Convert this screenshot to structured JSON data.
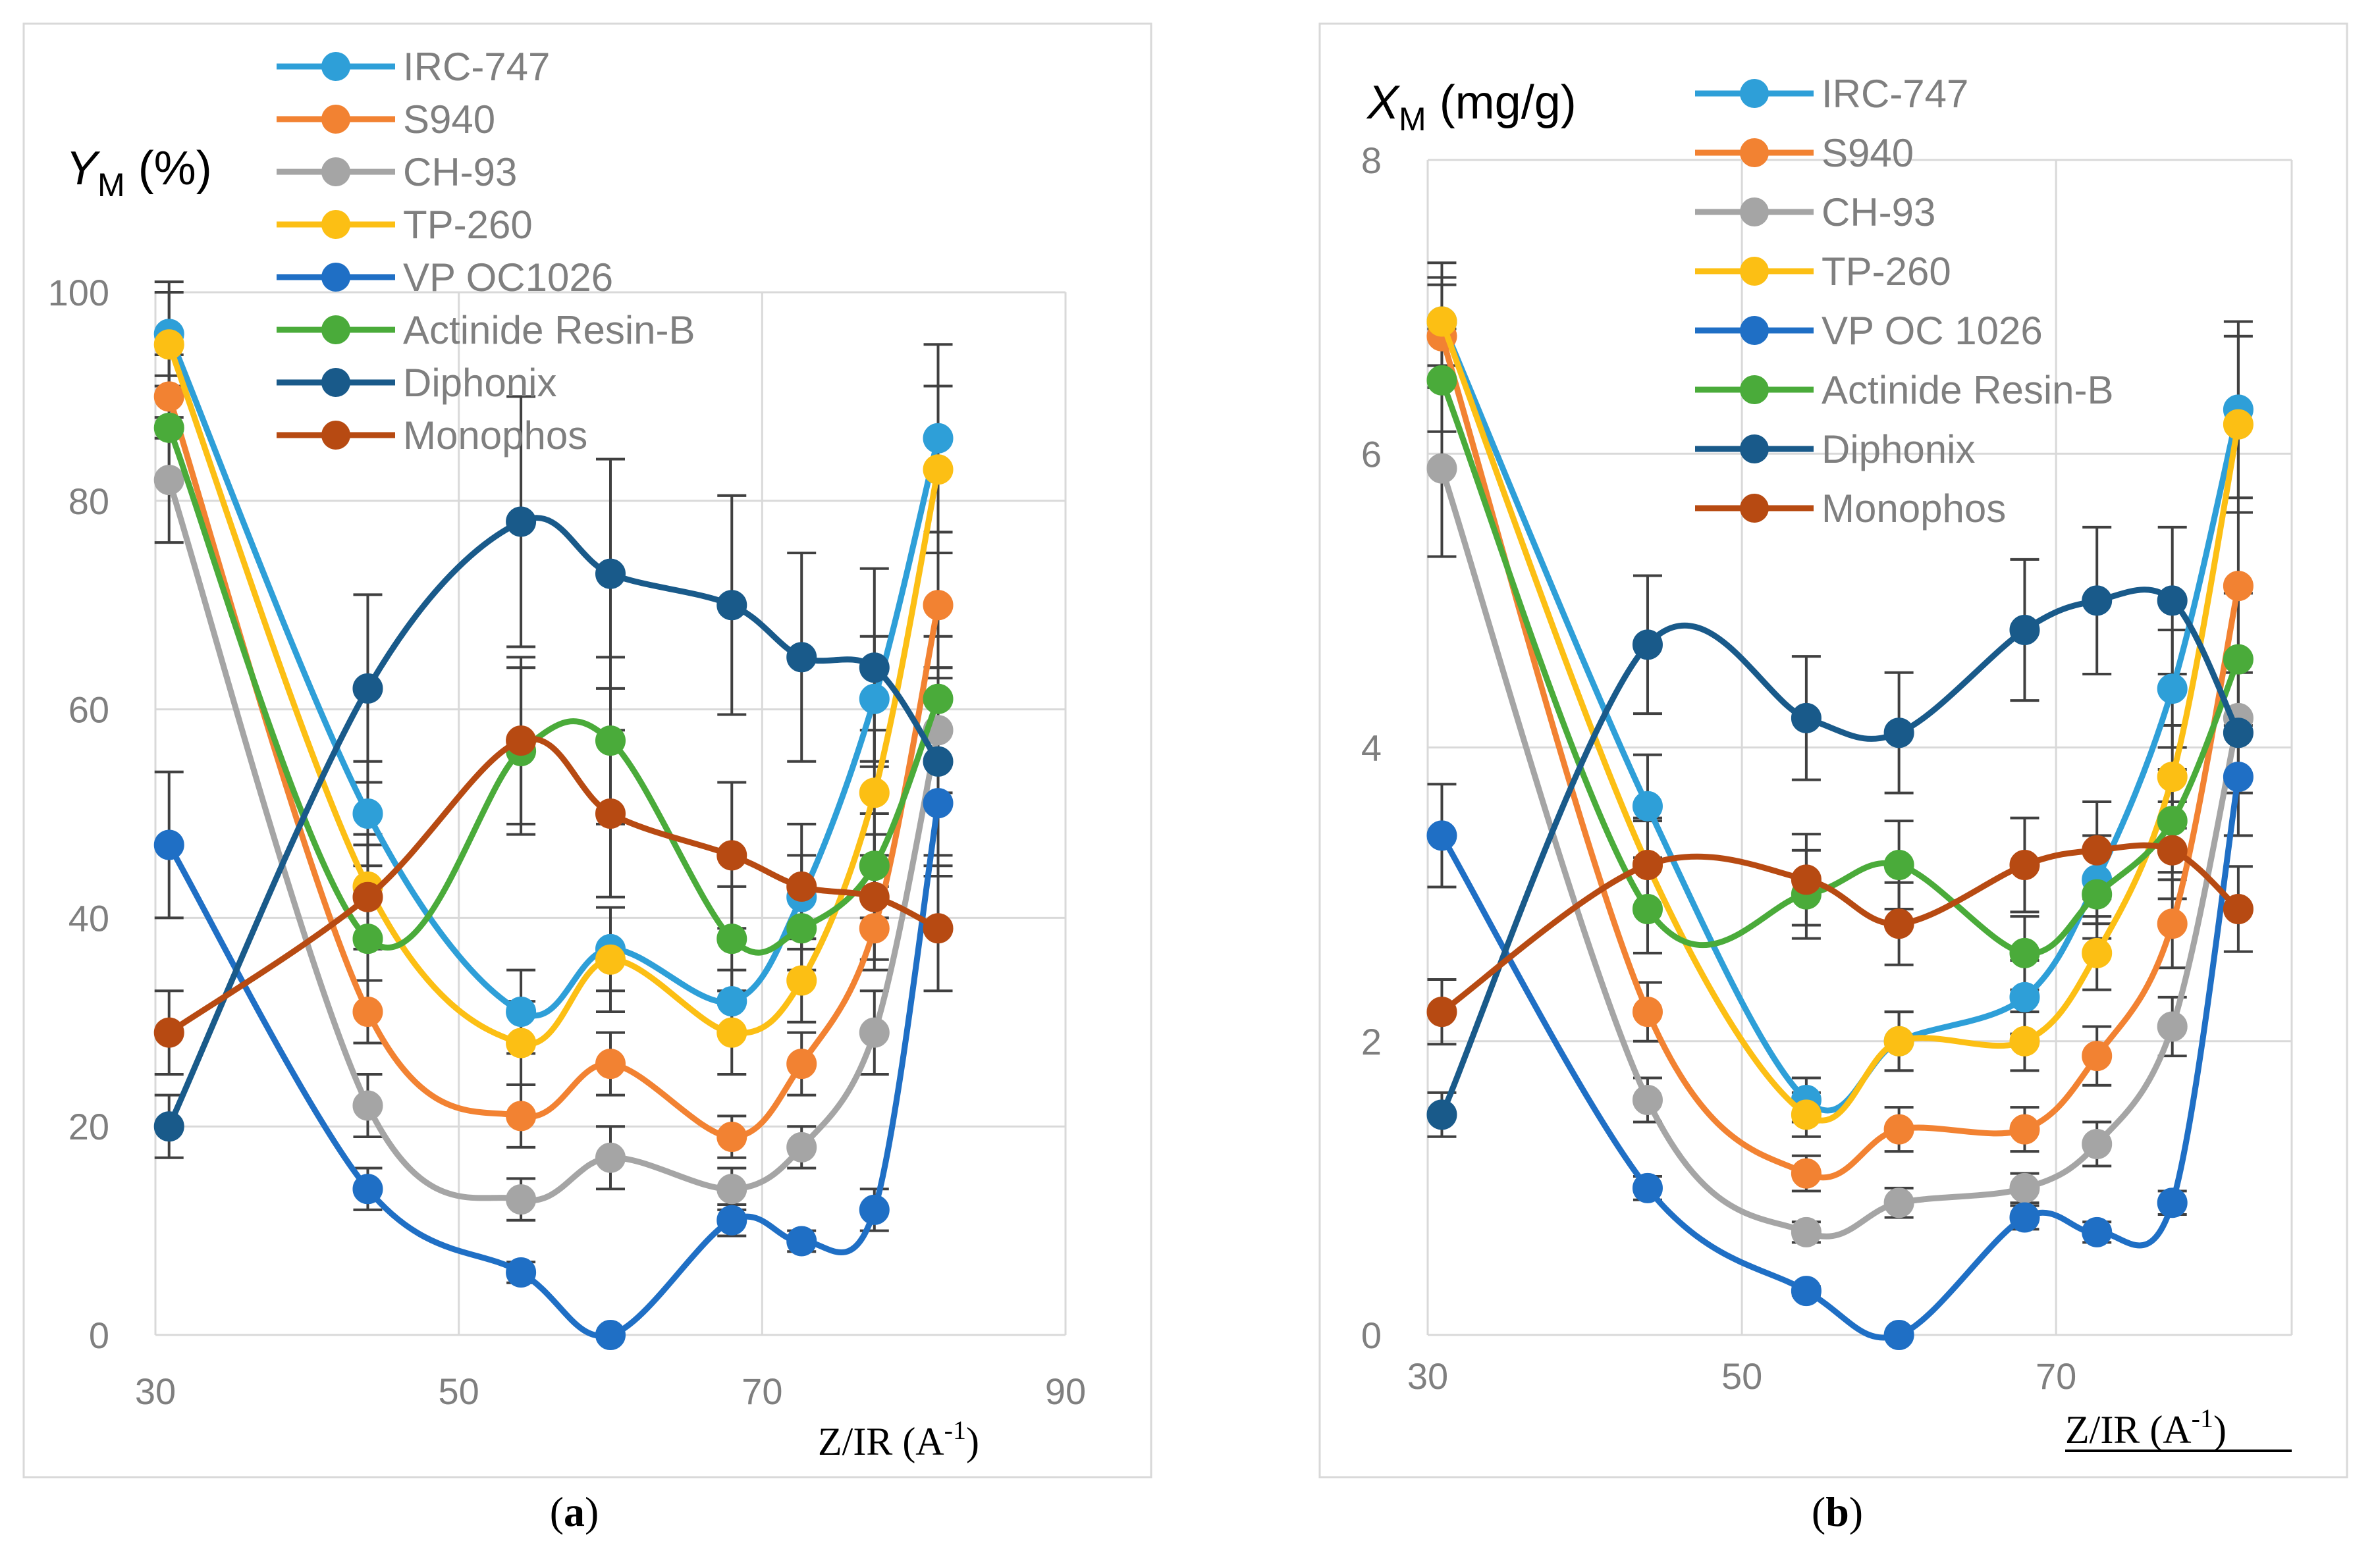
{
  "chart_data": [
    {
      "type": "line",
      "panel_label": "a",
      "ylabel_main": "Y",
      "ylabel_sub": "M",
      "ylabel_unit": "(%)",
      "xlabel": "Z/IR (A",
      "xlabel_sup": "-1",
      "xlabel_close": ")",
      "xlim": [
        30,
        90
      ],
      "ylim": [
        0,
        100
      ],
      "xticks": [
        30,
        50,
        70,
        90
      ],
      "yticks": [
        0,
        20,
        40,
        60,
        80,
        100
      ],
      "grid": true,
      "legend_position": "top",
      "x": [
        30.9,
        44.0,
        54.1,
        60.0,
        68.0,
        72.6,
        77.4,
        81.6
      ],
      "series": [
        {
          "name": "IRC-747",
          "color": "#2e9fd8",
          "values": [
            96,
            50,
            31,
            37,
            32,
            42,
            61,
            86
          ],
          "err": [
            5,
            5,
            4,
            4,
            3,
            4,
            6,
            9
          ]
        },
        {
          "name": "S940",
          "color": "#f28232",
          "values": [
            90,
            31,
            21,
            26,
            19,
            26,
            39,
            70
          ],
          "err": [
            4,
            3,
            3,
            3,
            2,
            3,
            4,
            7
          ]
        },
        {
          "name": "CH-93",
          "color": "#a5a5a5",
          "values": [
            82,
            22,
            13,
            17,
            14,
            18,
            29,
            58
          ],
          "err": [
            6,
            3,
            2,
            3,
            2,
            2,
            4,
            6
          ]
        },
        {
          "name": "TP-260",
          "color": "#fcbf14",
          "values": [
            95,
            43,
            28,
            36,
            29,
            34,
            52,
            83
          ],
          "err": [
            5,
            5,
            4,
            5,
            4,
            4,
            6,
            8
          ]
        },
        {
          "name": "VP OC1026",
          "color": "#1f6fc5",
          "values": [
            47,
            14,
            6,
            0,
            11,
            9,
            12,
            51
          ],
          "err": [
            7,
            2,
            1,
            0,
            1.5,
            1,
            2,
            7
          ]
        },
        {
          "name": "Actinide Resin-B",
          "color": "#4aab3a",
          "values": [
            87,
            38,
            56,
            57,
            38,
            39,
            45,
            61
          ],
          "err": [
            5,
            4,
            8,
            8,
            5,
            4,
            5,
            6
          ]
        },
        {
          "name": "Diphonix",
          "color": "#195a8a",
          "values": [
            20,
            62,
            78,
            73,
            70,
            65,
            64,
            55
          ],
          "err": [
            3,
            9,
            12,
            11,
            10.5,
            10,
            9.5,
            9
          ]
        },
        {
          "name": "Monophos",
          "color": "#b74a12",
          "values": [
            29,
            42,
            57,
            50,
            46,
            43,
            42,
            39
          ],
          "err": [
            4,
            5,
            8,
            8,
            7,
            6,
            6,
            6
          ]
        }
      ]
    },
    {
      "type": "line",
      "panel_label": "b",
      "ylabel_main": "X",
      "ylabel_sub": "M",
      "ylabel_unit": "(mg/g)",
      "xlabel": "Z/IR (A",
      "xlabel_sup": "-1",
      "xlabel_close": ")",
      "xlim": [
        30,
        85
      ],
      "ylim": [
        0,
        8
      ],
      "xticks": [
        30,
        50,
        70
      ],
      "yticks": [
        0,
        2,
        4,
        6,
        8
      ],
      "grid": true,
      "legend_position": "top",
      "x": [
        30.9,
        44.0,
        54.1,
        60.0,
        68.0,
        72.6,
        77.4,
        81.6
      ],
      "series": [
        {
          "name": "IRC-747",
          "color": "#2e9fd8",
          "values": [
            6.9,
            3.6,
            1.6,
            2.0,
            2.3,
            3.1,
            4.4,
            6.3
          ],
          "err": [
            0.4,
            0.35,
            0.15,
            0.2,
            0.25,
            0.3,
            0.4,
            0.6
          ]
        },
        {
          "name": "S940",
          "color": "#f28232",
          "values": [
            6.8,
            2.2,
            1.1,
            1.4,
            1.4,
            1.9,
            2.8,
            5.1
          ],
          "err": [
            0.35,
            0.2,
            0.12,
            0.15,
            0.15,
            0.2,
            0.3,
            0.5
          ]
        },
        {
          "name": "CH-93",
          "color": "#a5a5a5",
          "values": [
            5.9,
            1.6,
            0.7,
            0.9,
            1.0,
            1.3,
            2.1,
            4.2
          ],
          "err": [
            0.6,
            0.15,
            0.07,
            0.1,
            0.1,
            0.15,
            0.2,
            0.4
          ]
        },
        {
          "name": "TP-260",
          "color": "#fcbf14",
          "values": [
            6.9,
            3.2,
            1.5,
            2.0,
            2.0,
            2.6,
            3.8,
            6.2
          ],
          "err": [
            0.3,
            0.3,
            0.15,
            0.2,
            0.2,
            0.25,
            0.35,
            0.6
          ]
        },
        {
          "name": "VP OC 1026",
          "color": "#1f6fc5",
          "values": [
            3.4,
            1.0,
            0.3,
            0.0,
            0.8,
            0.7,
            0.9,
            3.8
          ],
          "err": [
            0.35,
            0.08,
            0.03,
            0.0,
            0.08,
            0.07,
            0.08,
            0.4
          ]
        },
        {
          "name": "Actinide Resin-B",
          "color": "#4aab3a",
          "values": [
            6.5,
            2.9,
            3.0,
            3.2,
            2.6,
            3.0,
            3.5,
            4.6
          ],
          "err": [
            0.35,
            0.3,
            0.3,
            0.3,
            0.25,
            0.3,
            0.35,
            0.45
          ]
        },
        {
          "name": "Diphonix",
          "color": "#195a8a",
          "values": [
            1.5,
            4.7,
            4.2,
            4.1,
            4.8,
            5.0,
            5.0,
            4.1
          ],
          "err": [
            0.15,
            0.47,
            0.42,
            0.41,
            0.48,
            0.5,
            0.5,
            0.41
          ]
        },
        {
          "name": "Monophos",
          "color": "#b74a12",
          "values": [
            2.2,
            3.2,
            3.1,
            2.8,
            3.2,
            3.3,
            3.3,
            2.9
          ],
          "err": [
            0.22,
            0.32,
            0.31,
            0.28,
            0.32,
            0.33,
            0.33,
            0.29
          ]
        }
      ]
    }
  ]
}
